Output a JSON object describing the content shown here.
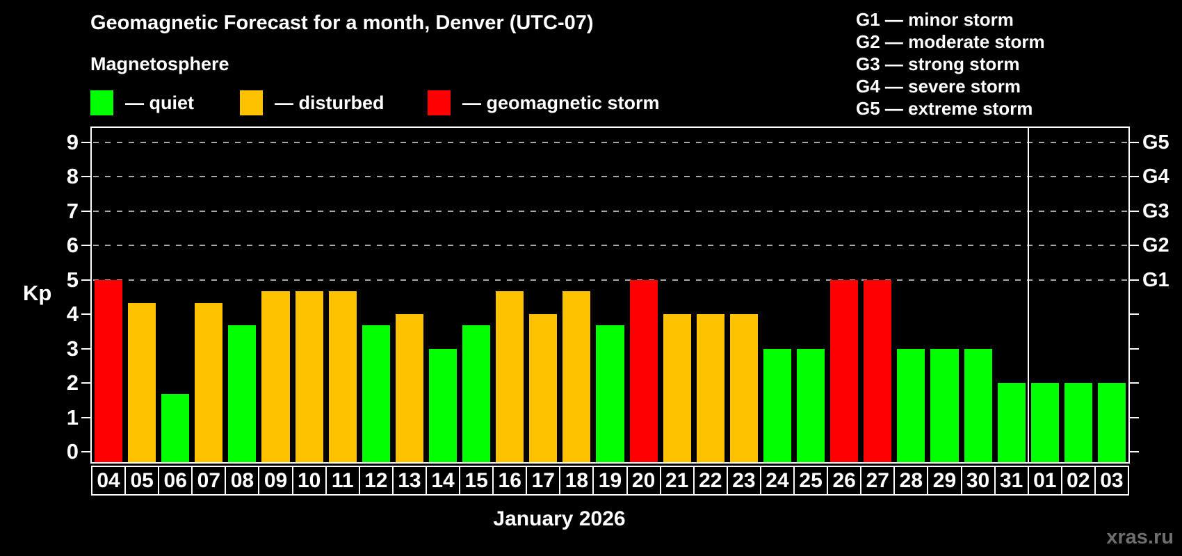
{
  "title": "Geomagnetic Forecast for a month, Denver (UTC-07)",
  "subtitle": "Magnetosphere",
  "month_label": "January 2026",
  "watermark": "xras.ru",
  "colors": {
    "quiet": "#00ff00",
    "disturbed": "#ffc200",
    "storm": "#ff0000",
    "grid": "#a9a9a9",
    "frame": "#ffffff",
    "watermark": "#6f6f6f"
  },
  "legend": {
    "items": [
      {
        "key": "quiet",
        "label": "— quiet",
        "color": "#00ff00",
        "x": 130
      },
      {
        "key": "disturbed",
        "label": "— disturbed",
        "color": "#ffc200",
        "x": 345
      },
      {
        "key": "storm",
        "label": "— geomagnetic storm",
        "color": "#ff0000",
        "x": 615
      }
    ]
  },
  "g_legend": {
    "items": [
      "G1 — minor storm",
      "G2 — moderate storm",
      "G3 — strong storm",
      "G4 — severe storm",
      "G5 — extreme storm"
    ]
  },
  "axis": {
    "y_label": "Kp",
    "y_ticks": [
      0,
      1,
      2,
      3,
      4,
      5,
      6,
      7,
      8,
      9
    ],
    "right_labels": [
      {
        "kp": 5,
        "label": "G1"
      },
      {
        "kp": 6,
        "label": "G2"
      },
      {
        "kp": 7,
        "label": "G3"
      },
      {
        "kp": 8,
        "label": "G4"
      },
      {
        "kp": 9,
        "label": "G5"
      }
    ]
  },
  "chart_data": {
    "type": "bar",
    "title": "Geomagnetic Forecast for a month, Denver (UTC-07)",
    "xlabel": "January 2026",
    "ylabel": "Kp",
    "ylim": [
      0,
      9.4
    ],
    "grid": "horizontal dashed lines at Kp 5,6,7,8,9 (G1–G5)",
    "legend_position": "top-left",
    "categories": [
      "04",
      "05",
      "06",
      "07",
      "08",
      "09",
      "10",
      "11",
      "12",
      "13",
      "14",
      "15",
      "16",
      "17",
      "18",
      "19",
      "20",
      "21",
      "22",
      "23",
      "24",
      "25",
      "26",
      "27",
      "28",
      "29",
      "30",
      "31",
      "01",
      "02",
      "03"
    ],
    "values": [
      5.0,
      4.33,
      1.67,
      4.33,
      3.67,
      4.67,
      4.67,
      4.67,
      3.67,
      4.0,
      3.0,
      3.67,
      4.67,
      4.0,
      4.67,
      3.67,
      5.0,
      4.0,
      4.0,
      4.0,
      3.0,
      3.0,
      5.0,
      5.0,
      3.0,
      3.0,
      3.0,
      2.0,
      2.0,
      2.0,
      2.0
    ],
    "statuses": [
      "storm",
      "disturbed",
      "quiet",
      "disturbed",
      "quiet",
      "disturbed",
      "disturbed",
      "disturbed",
      "quiet",
      "disturbed",
      "quiet",
      "quiet",
      "disturbed",
      "disturbed",
      "disturbed",
      "quiet",
      "storm",
      "disturbed",
      "disturbed",
      "disturbed",
      "quiet",
      "quiet",
      "storm",
      "storm",
      "quiet",
      "quiet",
      "quiet",
      "quiet",
      "quiet",
      "quiet",
      "quiet"
    ],
    "month_boundary_index": 28
  }
}
